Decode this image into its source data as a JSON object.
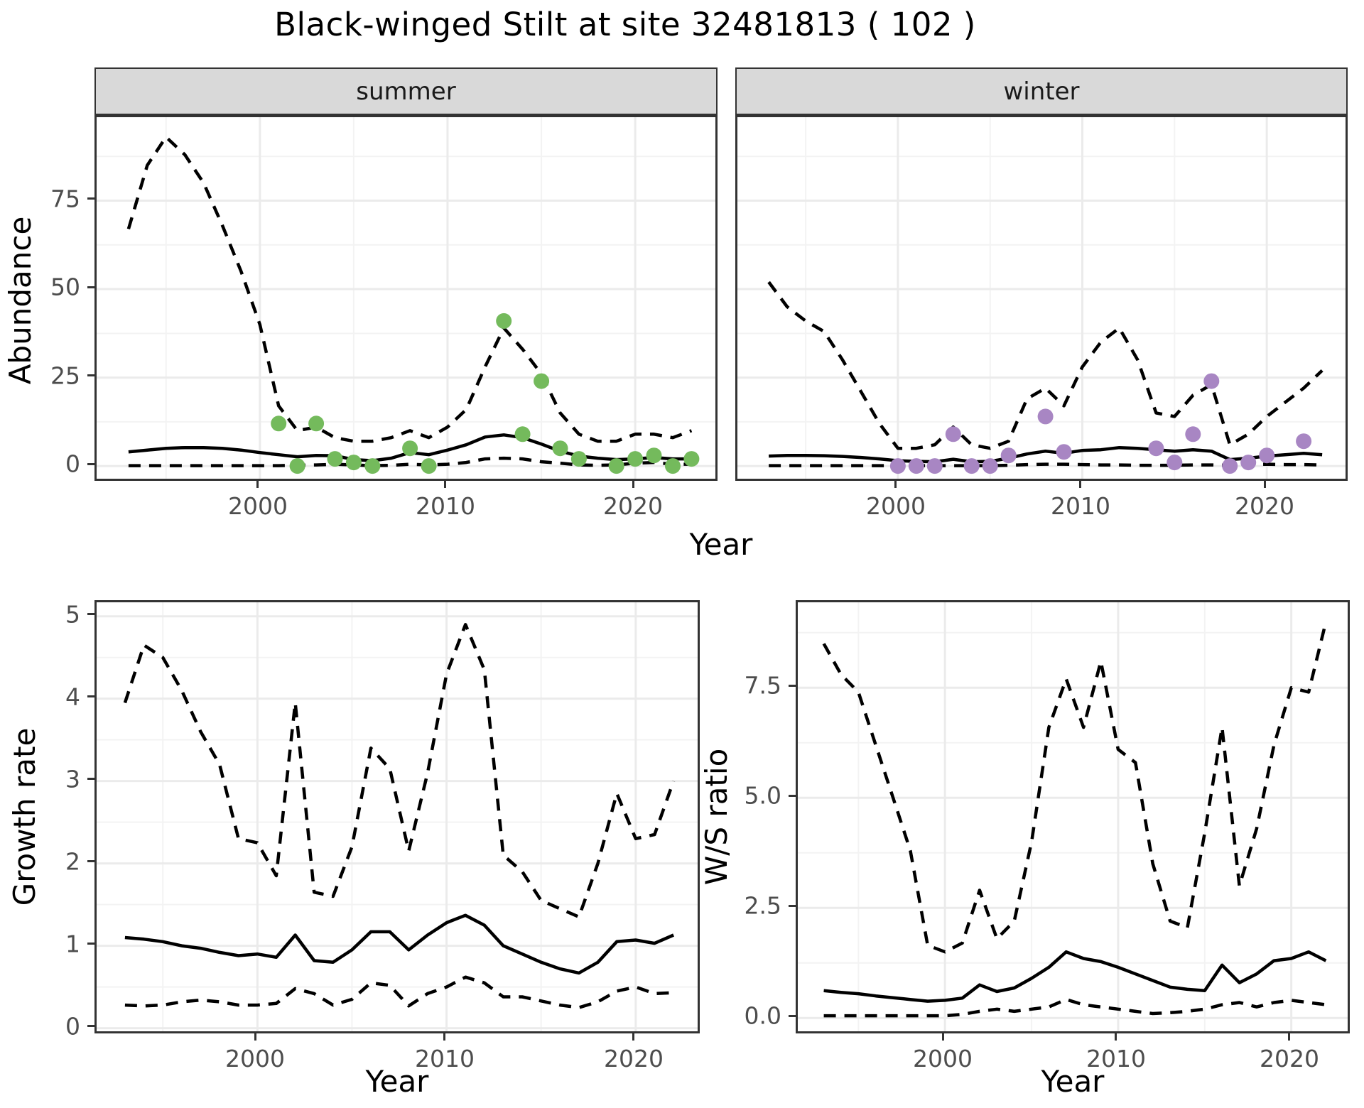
{
  "title": "Black-winged Stilt at site 32481813 ( 102 )",
  "facets": {
    "labels": [
      "summer",
      "winter"
    ]
  },
  "axes": {
    "abundance_label": "Abundance",
    "year_label": "Year",
    "growth_label": "Growth rate",
    "ws_label": "W/S ratio"
  },
  "colors": {
    "summer_point": "#74BA5C",
    "winter_point": "#A886C3",
    "line": "#000000",
    "strip_bg": "#D9D9D9",
    "panel_border": "#333333",
    "grid_major": "#EBEBEB",
    "grid_minor": "#F3F3F3",
    "tick_text": "#4D4D4D"
  },
  "chart_data": [
    {
      "id": "abundance",
      "type": "line",
      "title": "Black-winged Stilt at site 32481813 ( 102 )",
      "xlabel": "Year",
      "ylabel": "Abundance",
      "legend_position": "none",
      "grid": true,
      "xlim": [
        1991.3,
        2024.5
      ],
      "ylim": [
        -4.8,
        98.6
      ],
      "xticks": [
        2000,
        2010,
        2020
      ],
      "xtick_labels": [
        "2000",
        "2010",
        "2020"
      ],
      "xticks_minor": [
        1995,
        2005,
        2015
      ],
      "yticks": [
        0,
        25,
        50,
        75
      ],
      "ytick_labels": [
        "0",
        "25",
        "50",
        "75"
      ],
      "yticks_minor": [
        12.5,
        37.5,
        62.5,
        87.5
      ],
      "years": [
        1993,
        1994,
        1995,
        1996,
        1997,
        1998,
        1999,
        2000,
        2001,
        2002,
        2003,
        2004,
        2005,
        2006,
        2007,
        2008,
        2009,
        2010,
        2011,
        2012,
        2013,
        2014,
        2015,
        2016,
        2017,
        2018,
        2019,
        2020,
        2021,
        2022,
        2023
      ],
      "facets": [
        {
          "name": "summer",
          "point_color": "#74BA5C",
          "upper": [
            67,
            85,
            93,
            88,
            80,
            68,
            55,
            40,
            17,
            10,
            11,
            8,
            7,
            7,
            8,
            10,
            8,
            11,
            16,
            28,
            39,
            33,
            26,
            15,
            9,
            7,
            7,
            9,
            9,
            8,
            10
          ],
          "median": [
            4,
            4.5,
            5,
            5.2,
            5.2,
            5,
            4.5,
            3.8,
            3.2,
            2.6,
            3,
            2.9,
            1.8,
            1.5,
            2.2,
            3.8,
            3.2,
            4.5,
            6,
            8.2,
            8.8,
            8,
            6.2,
            4.2,
            2.8,
            2.2,
            1.8,
            2,
            2.4,
            2,
            2
          ],
          "lower": [
            0.1,
            0.1,
            0.1,
            0.1,
            0.1,
            0.1,
            0.1,
            0.1,
            0.1,
            0.2,
            0.3,
            0.5,
            0.3,
            0.1,
            0.2,
            0.5,
            0.3,
            0.5,
            1,
            2,
            2.2,
            2,
            1.2,
            0.8,
            0.3,
            0.2,
            0.3,
            0.8,
            1,
            0.5,
            0.5
          ],
          "points": [
            [
              2001,
              12
            ],
            [
              2002,
              0
            ],
            [
              2003,
              12
            ],
            [
              2004,
              2
            ],
            [
              2005,
              1
            ],
            [
              2006,
              0
            ],
            [
              2008,
              5
            ],
            [
              2009,
              0
            ],
            [
              2013,
              41
            ],
            [
              2014,
              9
            ],
            [
              2015,
              24
            ],
            [
              2016,
              5
            ],
            [
              2017,
              2
            ],
            [
              2019,
              0
            ],
            [
              2020,
              2
            ],
            [
              2021,
              3
            ],
            [
              2022,
              0
            ],
            [
              2023,
              2
            ]
          ]
        },
        {
          "name": "winter",
          "point_color": "#A886C3",
          "upper": [
            52,
            45,
            41,
            38,
            30,
            21,
            12,
            5,
            5,
            6,
            11,
            6,
            5,
            7,
            19,
            22,
            17,
            28,
            35,
            39,
            30,
            15,
            14,
            20,
            23,
            6,
            9,
            14,
            18,
            22,
            27
          ],
          "median": [
            2.8,
            3,
            3,
            2.9,
            2.7,
            2.4,
            2,
            1.5,
            1.3,
            1.2,
            1.9,
            1.2,
            1.3,
            2.2,
            3.4,
            4.2,
            3.6,
            4.4,
            4.6,
            5.2,
            5,
            4.6,
            4.2,
            4.6,
            4.2,
            1.8,
            2.2,
            2.8,
            3.2,
            3.6,
            3.2
          ],
          "lower": [
            0.1,
            0.1,
            0.1,
            0.1,
            0.1,
            0.1,
            0.1,
            0.1,
            0.1,
            0.1,
            0.1,
            0.1,
            0.1,
            0.2,
            0.4,
            0.5,
            0.5,
            0.4,
            0.3,
            0.3,
            0.2,
            0.2,
            0.2,
            0.3,
            0.3,
            0.2,
            0.4,
            0.5,
            0.4,
            0.4,
            0.3
          ],
          "points": [
            [
              2000,
              0
            ],
            [
              2001,
              0
            ],
            [
              2002,
              0
            ],
            [
              2003,
              9
            ],
            [
              2004,
              0
            ],
            [
              2005,
              0
            ],
            [
              2006,
              3
            ],
            [
              2008,
              14
            ],
            [
              2009,
              4
            ],
            [
              2014,
              5
            ],
            [
              2015,
              1
            ],
            [
              2016,
              9
            ],
            [
              2017,
              24
            ],
            [
              2018,
              0
            ],
            [
              2019,
              1
            ],
            [
              2020,
              3
            ],
            [
              2022,
              7
            ]
          ]
        }
      ]
    },
    {
      "id": "growth_rate",
      "type": "line",
      "title": "",
      "xlabel": "Year",
      "ylabel": "Growth rate",
      "grid": true,
      "xlim": [
        1991.5,
        2023.5
      ],
      "ylim": [
        -0.09,
        5.17
      ],
      "xticks": [
        2000,
        2010,
        2020
      ],
      "xtick_labels": [
        "2000",
        "2010",
        "2020"
      ],
      "xticks_minor": [
        1995,
        2005,
        2015
      ],
      "yticks": [
        0,
        1,
        2,
        3,
        4,
        5
      ],
      "ytick_labels": [
        "0",
        "1",
        "2",
        "3",
        "4",
        "5"
      ],
      "yticks_minor": [
        0.5,
        1.5,
        2.5,
        3.5,
        4.5
      ],
      "years": [
        1993,
        1994,
        1995,
        1996,
        1997,
        1998,
        1999,
        2000,
        2001,
        2002,
        2003,
        2004,
        2005,
        2006,
        2007,
        2008,
        2009,
        2010,
        2011,
        2012,
        2013,
        2014,
        2015,
        2016,
        2017,
        2018,
        2019,
        2020,
        2021,
        2022
      ],
      "upper": [
        3.95,
        4.65,
        4.5,
        4.1,
        3.6,
        3.2,
        2.3,
        2.25,
        1.85,
        3.95,
        1.65,
        1.6,
        2.2,
        3.4,
        3.15,
        2.15,
        3.1,
        4.3,
        4.9,
        4.35,
        2.1,
        1.9,
        1.55,
        1.45,
        1.35,
        2.0,
        2.85,
        2.3,
        2.35,
        3.0
      ],
      "median": [
        1.1,
        1.08,
        1.05,
        1.0,
        0.97,
        0.92,
        0.88,
        0.9,
        0.86,
        1.13,
        0.82,
        0.8,
        0.95,
        1.17,
        1.17,
        0.95,
        1.13,
        1.28,
        1.37,
        1.25,
        1.0,
        0.9,
        0.8,
        0.72,
        0.67,
        0.8,
        1.05,
        1.07,
        1.03,
        1.13
      ],
      "lower": [
        0.28,
        0.27,
        0.28,
        0.32,
        0.34,
        0.32,
        0.28,
        0.28,
        0.3,
        0.48,
        0.42,
        0.28,
        0.35,
        0.55,
        0.52,
        0.27,
        0.42,
        0.5,
        0.62,
        0.55,
        0.38,
        0.38,
        0.33,
        0.28,
        0.25,
        0.32,
        0.45,
        0.5,
        0.42,
        0.43
      ]
    },
    {
      "id": "ws_ratio",
      "type": "line",
      "title": "",
      "xlabel": "Year",
      "ylabel": "W/S ratio",
      "grid": true,
      "xlim": [
        1991.5,
        2023.5
      ],
      "ylim": [
        -0.4,
        9.44
      ],
      "xticks": [
        2000,
        2010,
        2020
      ],
      "xtick_labels": [
        "2000",
        "2010",
        "2020"
      ],
      "xticks_minor": [
        1995,
        2005,
        2015
      ],
      "yticks": [
        0,
        2.5,
        5,
        7.5
      ],
      "ytick_labels": [
        "0.0",
        "2.5",
        "5.0",
        "7.5"
      ],
      "yticks_minor": [
        1.25,
        3.75,
        6.25,
        8.75
      ],
      "years": [
        1993,
        1994,
        1995,
        1996,
        1997,
        1998,
        1999,
        2000,
        2001,
        2002,
        2003,
        2004,
        2005,
        2006,
        2007,
        2008,
        2009,
        2010,
        2011,
        2012,
        2013,
        2014,
        2015,
        2016,
        2017,
        2018,
        2019,
        2020,
        2021,
        2022
      ],
      "upper": [
        8.5,
        7.8,
        7.4,
        6.2,
        5.0,
        3.8,
        1.65,
        1.5,
        1.7,
        2.9,
        1.8,
        2.2,
        4.0,
        6.6,
        7.7,
        6.6,
        8.1,
        6.1,
        5.8,
        3.5,
        2.2,
        2.05,
        4.2,
        6.6,
        3.0,
        4.3,
        6.2,
        7.5,
        7.4,
        9.0
      ],
      "median": [
        0.62,
        0.58,
        0.55,
        0.5,
        0.46,
        0.42,
        0.38,
        0.4,
        0.45,
        0.75,
        0.6,
        0.68,
        0.9,
        1.15,
        1.5,
        1.35,
        1.28,
        1.15,
        1.0,
        0.85,
        0.7,
        0.65,
        0.62,
        1.2,
        0.8,
        1.0,
        1.3,
        1.35,
        1.5,
        1.3
      ],
      "lower": [
        0.05,
        0.05,
        0.05,
        0.05,
        0.05,
        0.05,
        0.05,
        0.05,
        0.08,
        0.15,
        0.2,
        0.15,
        0.2,
        0.25,
        0.42,
        0.3,
        0.25,
        0.2,
        0.15,
        0.1,
        0.12,
        0.15,
        0.2,
        0.3,
        0.35,
        0.25,
        0.35,
        0.4,
        0.35,
        0.3
      ]
    }
  ]
}
